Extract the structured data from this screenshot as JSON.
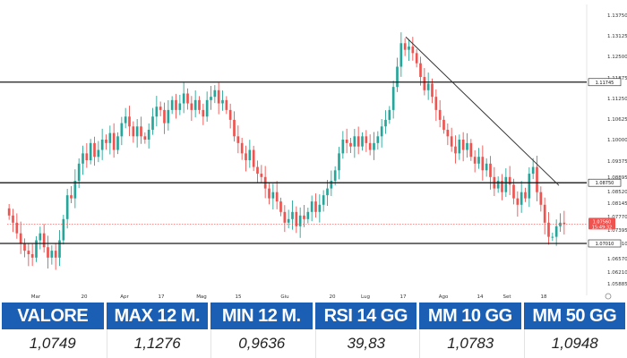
{
  "chart_data": {
    "type": "candlestick",
    "instrument": "",
    "title": "",
    "y_ticks": [
      "1.13750",
      "1.13125",
      "1.12500",
      "1.11875",
      "1.11250",
      "1.10625",
      "1.10000",
      "1.09375",
      "1.08895",
      "1.08520",
      "1.08145",
      "1.07770",
      "1.07395",
      "1.07010",
      "1.06570",
      "1.06210",
      "1.05885"
    ],
    "x_ticks": [
      "Mar",
      "20",
      "Apr",
      "17",
      "Mag",
      "15",
      "Giu",
      "20",
      "Lug",
      "17",
      "Ago",
      "14",
      "Set",
      "18"
    ],
    "levels": [
      {
        "label": "1.11745",
        "value": 1.11745
      },
      {
        "label": "1.08750",
        "value": 1.0875
      },
      {
        "label": "1.07010",
        "value": 1.0701
      }
    ],
    "current_price": {
      "label": "1.07560",
      "value": 1.0756,
      "timer": "15:49:32"
    },
    "trendline": {
      "start_value": 1.1309,
      "end_value": 1.0868
    },
    "up_color": "#26a69a",
    "down_color": "#ef5350",
    "closes": [
      1.078,
      1.076,
      1.073,
      1.07,
      1.068,
      1.067,
      1.066,
      1.071,
      1.073,
      1.069,
      1.066,
      1.068,
      1.066,
      1.071,
      1.077,
      1.084,
      1.083,
      1.088,
      1.093,
      1.096,
      1.094,
      1.099,
      1.095,
      1.097,
      1.1,
      1.099,
      1.102,
      1.097,
      1.101,
      1.105,
      1.107,
      1.104,
      1.101,
      1.104,
      1.101,
      1.1,
      1.103,
      1.107,
      1.11,
      1.109,
      1.105,
      1.109,
      1.112,
      1.109,
      1.111,
      1.114,
      1.111,
      1.109,
      1.112,
      1.109,
      1.107,
      1.112,
      1.113,
      1.115,
      1.111,
      1.112,
      1.109,
      1.106,
      1.101,
      1.099,
      1.096,
      1.094,
      1.097,
      1.092,
      1.09,
      1.089,
      1.086,
      1.083,
      1.085,
      1.082,
      1.079,
      1.076,
      1.077,
      1.079,
      1.075,
      1.078,
      1.077,
      1.079,
      1.082,
      1.079,
      1.081,
      1.084,
      1.086,
      1.088,
      1.091,
      1.096,
      1.1,
      1.099,
      1.098,
      1.101,
      1.098,
      1.101,
      1.099,
      1.097,
      1.099,
      1.101,
      1.104,
      1.106,
      1.109,
      1.116,
      1.122,
      1.129,
      1.127,
      1.128,
      1.126,
      1.123,
      1.119,
      1.115,
      1.117,
      1.113,
      1.109,
      1.106,
      1.103,
      1.101,
      1.098,
      1.096,
      1.1,
      1.097,
      1.099,
      1.095,
      1.093,
      1.095,
      1.091,
      1.093,
      1.089,
      1.086,
      1.088,
      1.085,
      1.089,
      1.087,
      1.083,
      1.081,
      1.085,
      1.083,
      1.09,
      1.092,
      1.085,
      1.081,
      1.076,
      1.072,
      1.072,
      1.075,
      1.076,
      1.0756
    ]
  },
  "stats": [
    {
      "label": "VALORE",
      "value": "1,0749"
    },
    {
      "label": "MAX 12 M.",
      "value": "1,1276"
    },
    {
      "label": "MIN 12 M.",
      "value": "0,9636"
    },
    {
      "label": "RSI 14 GG",
      "value": "39,83"
    },
    {
      "label": "MM 10 GG",
      "value": "1,0783"
    },
    {
      "label": "MM 50 GG",
      "value": "1,0948"
    }
  ]
}
